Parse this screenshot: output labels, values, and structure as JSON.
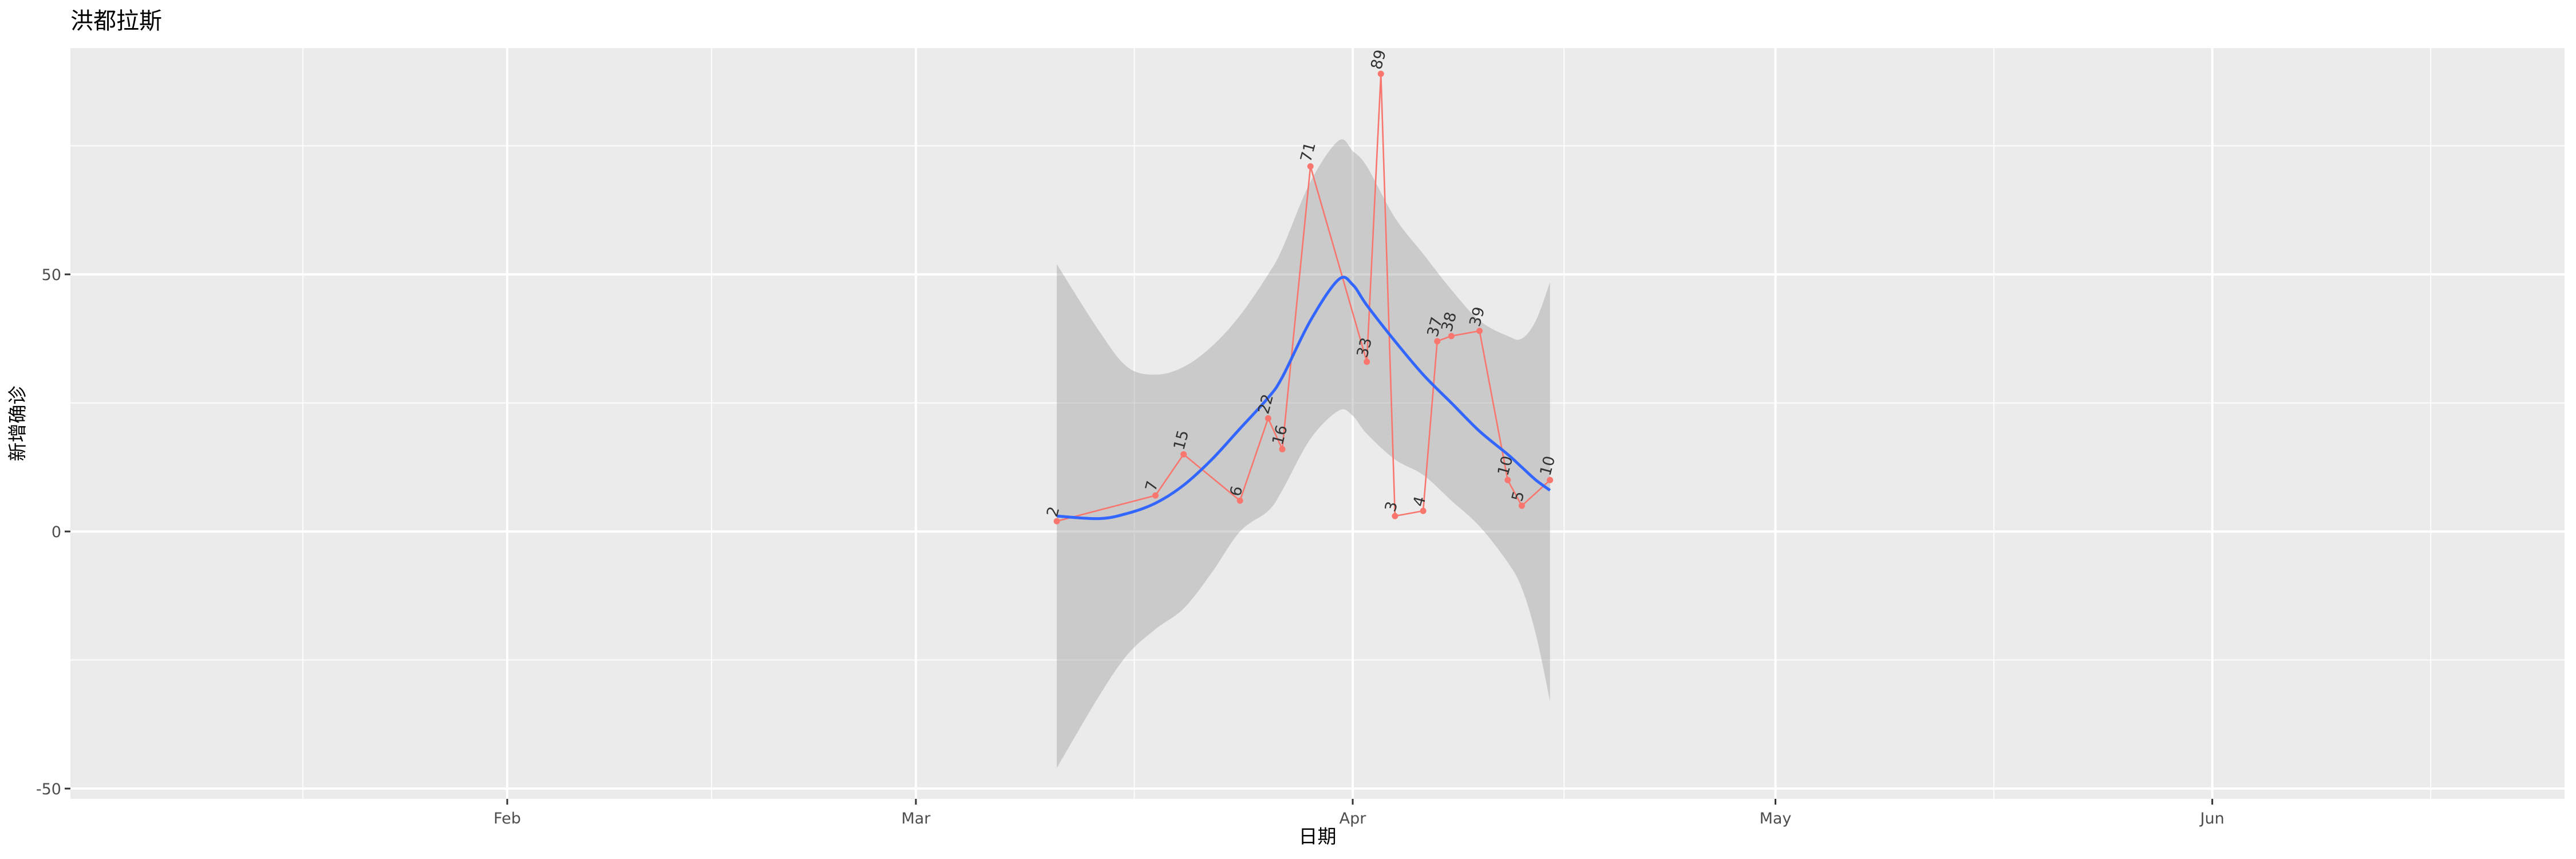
{
  "chart_data": {
    "type": "line",
    "title": "洪都拉斯",
    "xlabel": "日期",
    "ylabel": "新增确诊",
    "x_range": [
      "2020-01-01",
      "2020-06-26"
    ],
    "ylim": [
      -52,
      94
    ],
    "x_ticks": [
      {
        "date": "2020-02-01",
        "label": "Feb"
      },
      {
        "date": "2020-03-01",
        "label": "Mar"
      },
      {
        "date": "2020-04-01",
        "label": "Apr"
      },
      {
        "date": "2020-05-01",
        "label": "May"
      },
      {
        "date": "2020-06-01",
        "label": "Jun"
      }
    ],
    "y_ticks": [
      -50,
      0,
      50
    ],
    "grid": true,
    "series": [
      {
        "color": "#f8766d",
        "points": [
          {
            "date": "2020-03-11",
            "value": 2
          },
          {
            "date": "2020-03-18",
            "value": 7
          },
          {
            "date": "2020-03-20",
            "value": 15
          },
          {
            "date": "2020-03-24",
            "value": 6
          },
          {
            "date": "2020-03-26",
            "value": 22
          },
          {
            "date": "2020-03-27",
            "value": 16
          },
          {
            "date": "2020-03-29",
            "value": 71
          },
          {
            "date": "2020-04-02",
            "value": 33
          },
          {
            "date": "2020-04-03",
            "value": 89
          },
          {
            "date": "2020-04-04",
            "value": 3
          },
          {
            "date": "2020-04-06",
            "value": 4
          },
          {
            "date": "2020-04-07",
            "value": 37
          },
          {
            "date": "2020-04-08",
            "value": 38
          },
          {
            "date": "2020-04-10",
            "value": 39
          },
          {
            "date": "2020-04-12",
            "value": 10
          },
          {
            "date": "2020-04-13",
            "value": 5
          },
          {
            "date": "2020-04-15",
            "value": 10
          }
        ]
      }
    ],
    "smooth": {
      "color": "#3366ff",
      "ribbon_color": "#999999",
      "points": [
        {
          "date": "2020-03-11",
          "fit": 3,
          "lower": -46,
          "upper": 52
        },
        {
          "date": "2020-03-14",
          "fit": 2.5,
          "lower": -32,
          "upper": 39
        },
        {
          "date": "2020-03-16",
          "fit": 3.5,
          "lower": -24,
          "upper": 32
        },
        {
          "date": "2020-03-18",
          "fit": 5.5,
          "lower": -19,
          "upper": 30.5
        },
        {
          "date": "2020-03-20",
          "fit": 9,
          "lower": -15,
          "upper": 32
        },
        {
          "date": "2020-03-22",
          "fit": 14,
          "lower": -8,
          "upper": 36
        },
        {
          "date": "2020-03-24",
          "fit": 20,
          "lower": 0,
          "upper": 42
        },
        {
          "date": "2020-03-26",
          "fit": 26,
          "lower": 4,
          "upper": 50
        },
        {
          "date": "2020-03-27",
          "fit": 30,
          "lower": 8,
          "upper": 55
        },
        {
          "date": "2020-03-29",
          "fit": 41,
          "lower": 18,
          "upper": 68
        },
        {
          "date": "2020-03-31",
          "fit": 49,
          "lower": 23.5,
          "upper": 76
        },
        {
          "date": "2020-04-01",
          "fit": 48,
          "lower": 22.5,
          "upper": 74
        },
        {
          "date": "2020-04-02",
          "fit": 44,
          "lower": 19,
          "upper": 71
        },
        {
          "date": "2020-04-04",
          "fit": 37,
          "lower": 14,
          "upper": 61
        },
        {
          "date": "2020-04-06",
          "fit": 30.5,
          "lower": 11,
          "upper": 54
        },
        {
          "date": "2020-04-08",
          "fit": 25,
          "lower": 6,
          "upper": 47
        },
        {
          "date": "2020-04-10",
          "fit": 19.5,
          "lower": 1,
          "upper": 41
        },
        {
          "date": "2020-04-12",
          "fit": 15,
          "lower": -6,
          "upper": 38
        },
        {
          "date": "2020-04-13",
          "fit": 12.5,
          "lower": -11,
          "upper": 37.5
        },
        {
          "date": "2020-04-14",
          "fit": 10,
          "lower": -20,
          "upper": 41
        },
        {
          "date": "2020-04-15",
          "fit": 8,
          "lower": -33,
          "upper": 48.5
        }
      ]
    }
  }
}
